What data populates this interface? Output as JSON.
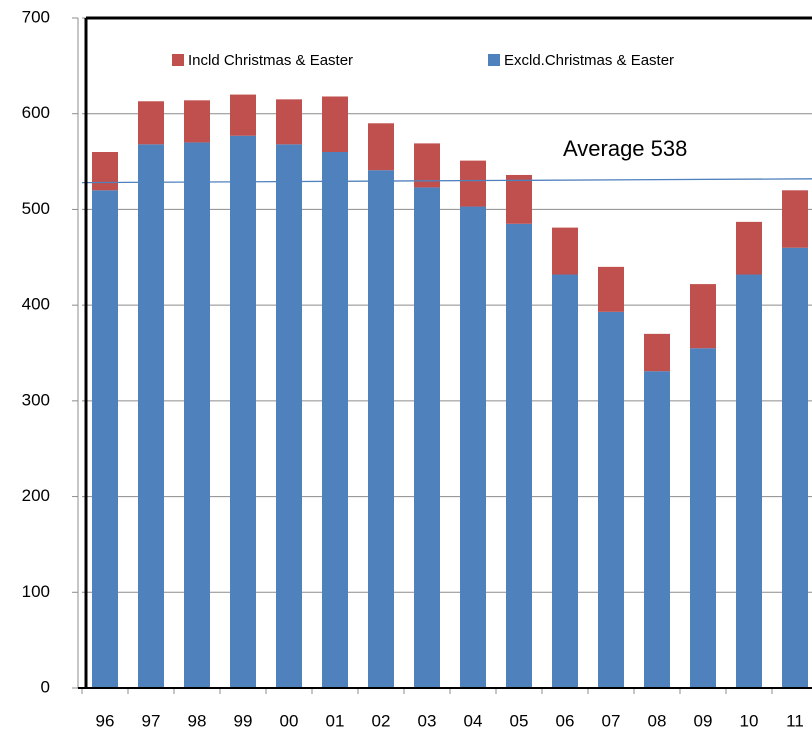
{
  "chart_data": {
    "type": "stacked_bar",
    "categories": [
      "96",
      "97",
      "98",
      "99",
      "00",
      "01",
      "02",
      "03",
      "04",
      "05",
      "06",
      "07",
      "08",
      "09",
      "10",
      "11"
    ],
    "series": [
      {
        "name": "Excld.Christmas & Easter",
        "color": "#4f81bd",
        "values": [
          520,
          568,
          570,
          577,
          568,
          560,
          541,
          523,
          503,
          485,
          432,
          393,
          331,
          355,
          432,
          460
        ]
      },
      {
        "name": "Incld Christmas & Easter",
        "color": "#c0504d",
        "values": [
          40,
          45,
          44,
          43,
          47,
          58,
          49,
          46,
          48,
          51,
          49,
          47,
          39,
          67,
          55,
          60
        ]
      }
    ],
    "ylim": [
      0,
      700
    ],
    "yticks": [
      0,
      100,
      200,
      300,
      400,
      500,
      600,
      700
    ],
    "grid": true,
    "average_line": {
      "label": "Average 538",
      "values": [
        528,
        532
      ],
      "color": "#4f81bd"
    }
  }
}
